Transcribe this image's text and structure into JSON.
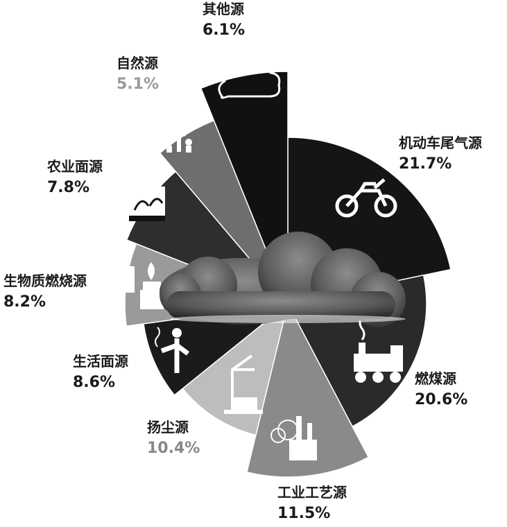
{
  "chart_data": {
    "type": "pie",
    "categories": [
      "机动车尾气源",
      "燃煤源",
      "工业工艺源",
      "扬尘源",
      "生活面源",
      "生物质燃烧源",
      "农业面源",
      "自然源",
      "其他源"
    ],
    "values": [
      21.7,
      20.6,
      11.5,
      10.4,
      8.6,
      8.2,
      7.8,
      5.1,
      6.1
    ],
    "value_labels": [
      "21.7%",
      "20.6%",
      "11.5%",
      "10.4%",
      "8.6%",
      "8.2%",
      "7.8%",
      "5.1%",
      "6.1%"
    ],
    "colors": [
      "#151515",
      "#2a2a2a",
      "#8a8a8a",
      "#bdbdbd",
      "#1b1b1b",
      "#9a9a9a",
      "#2e2e2e",
      "#6e6e6e",
      "#111111"
    ],
    "icons": [
      "motorcycle-icon",
      "steam-train-icon",
      "factory-icon",
      "crane-icon",
      "smoking-person-icon",
      "stove-fire-icon",
      "farm-field-icon",
      "tree-icon",
      "cloud-icon"
    ],
    "title": "",
    "legend": "none"
  }
}
